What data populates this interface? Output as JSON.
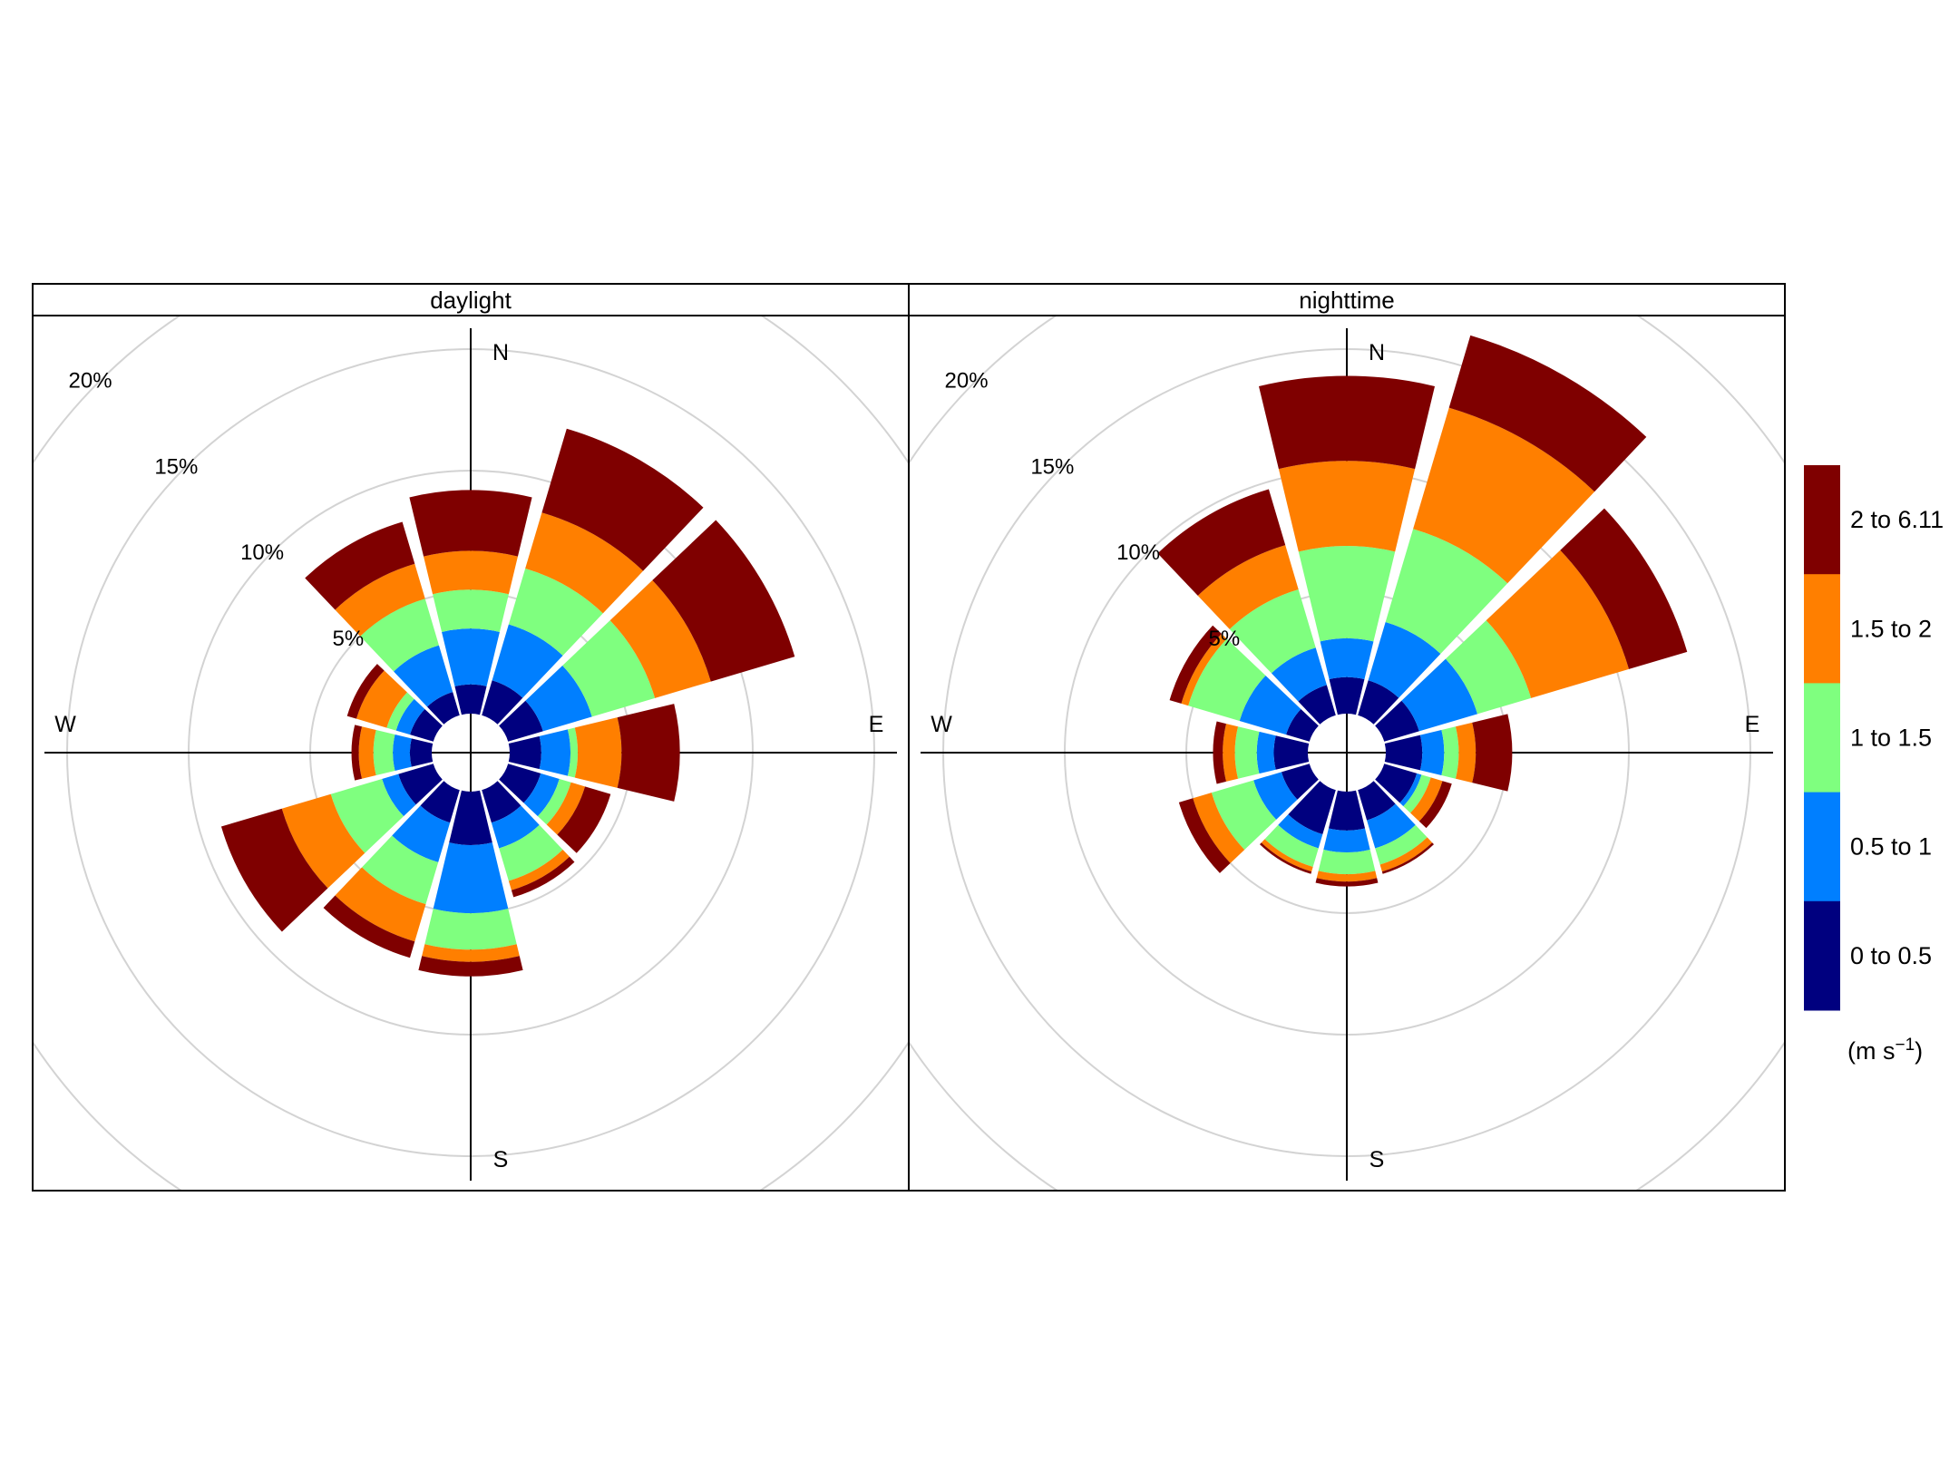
{
  "chart_data": {
    "type": "windrose",
    "angle_units": "degrees",
    "radial_units": "percent",
    "radial_ticks": [
      5,
      10,
      15,
      20
    ],
    "radial_tick_labels": [
      "5%",
      "10%",
      "15%",
      "20%"
    ],
    "directions": [
      "N",
      "E",
      "S",
      "W"
    ],
    "bin_angles": [
      0,
      30,
      60,
      90,
      120,
      150,
      180,
      210,
      240,
      270,
      300,
      330
    ],
    "speed_bins": [
      "0 to 0.5",
      "0.5 to 1",
      "1 to 1.5",
      "1.5 to 2",
      "2 to 6.11"
    ],
    "colors": [
      "#00007f",
      "#007fff",
      "#7fff7f",
      "#ff7f00",
      "#7f0000"
    ],
    "legend_unit": "(m s",
    "legend_unit_sup": "−1",
    "legend_unit_close": ")",
    "panels": [
      {
        "title": "daylight",
        "cumulative": [
          [
            1.2,
            3.5,
            5.1,
            6.7,
            9.2
          ],
          [
            1.5,
            3.9,
            6.3,
            8.7,
            12.3
          ],
          [
            1.5,
            3.6,
            6.3,
            8.7,
            12.3
          ],
          [
            1.3,
            2.5,
            2.8,
            4.6,
            7.0
          ],
          [
            1.4,
            2.2,
            2.7,
            3.3,
            4.4
          ],
          [
            1.4,
            2.5,
            3.9,
            4.3,
            4.6
          ],
          [
            2.2,
            5.0,
            6.5,
            7.0,
            7.6
          ],
          [
            1.4,
            3.1,
            4.9,
            6.5,
            7.2
          ],
          [
            1.5,
            2.2,
            4.4,
            6.5,
            9.1
          ],
          [
            0.9,
            1.6,
            2.4,
            3.0,
            3.3
          ],
          [
            1.0,
            1.6,
            2.0,
            3.3,
            3.7
          ],
          [
            1.0,
            3.0,
            5.0,
            6.5,
            8.3
          ]
        ]
      },
      {
        "title": "nighttime",
        "cumulative": [
          [
            1.5,
            3.1,
            6.9,
            10.4,
            13.9
          ],
          [
            1.5,
            4.0,
            8.0,
            13.2,
            16.3
          ],
          [
            1.5,
            4.0,
            6.3,
            10.5,
            13.0
          ],
          [
            1.5,
            2.4,
            3.0,
            3.7,
            5.2
          ],
          [
            1.4,
            1.6,
            2.0,
            2.5,
            2.9
          ],
          [
            1.3,
            2.5,
            3.2,
            3.5,
            3.6
          ],
          [
            1.6,
            2.5,
            3.4,
            3.7,
            3.9
          ],
          [
            1.9,
            2.5,
            3.3,
            3.5,
            3.6
          ],
          [
            1.2,
            2.4,
            4.2,
            5.0,
            5.6
          ],
          [
            1.4,
            2.1,
            3.0,
            3.5,
            3.9
          ],
          [
            1.0,
            3.0,
            5.2,
            5.5,
            6.0
          ],
          [
            1.3,
            2.9,
            5.4,
            7.3,
            9.7
          ]
        ]
      }
    ]
  }
}
